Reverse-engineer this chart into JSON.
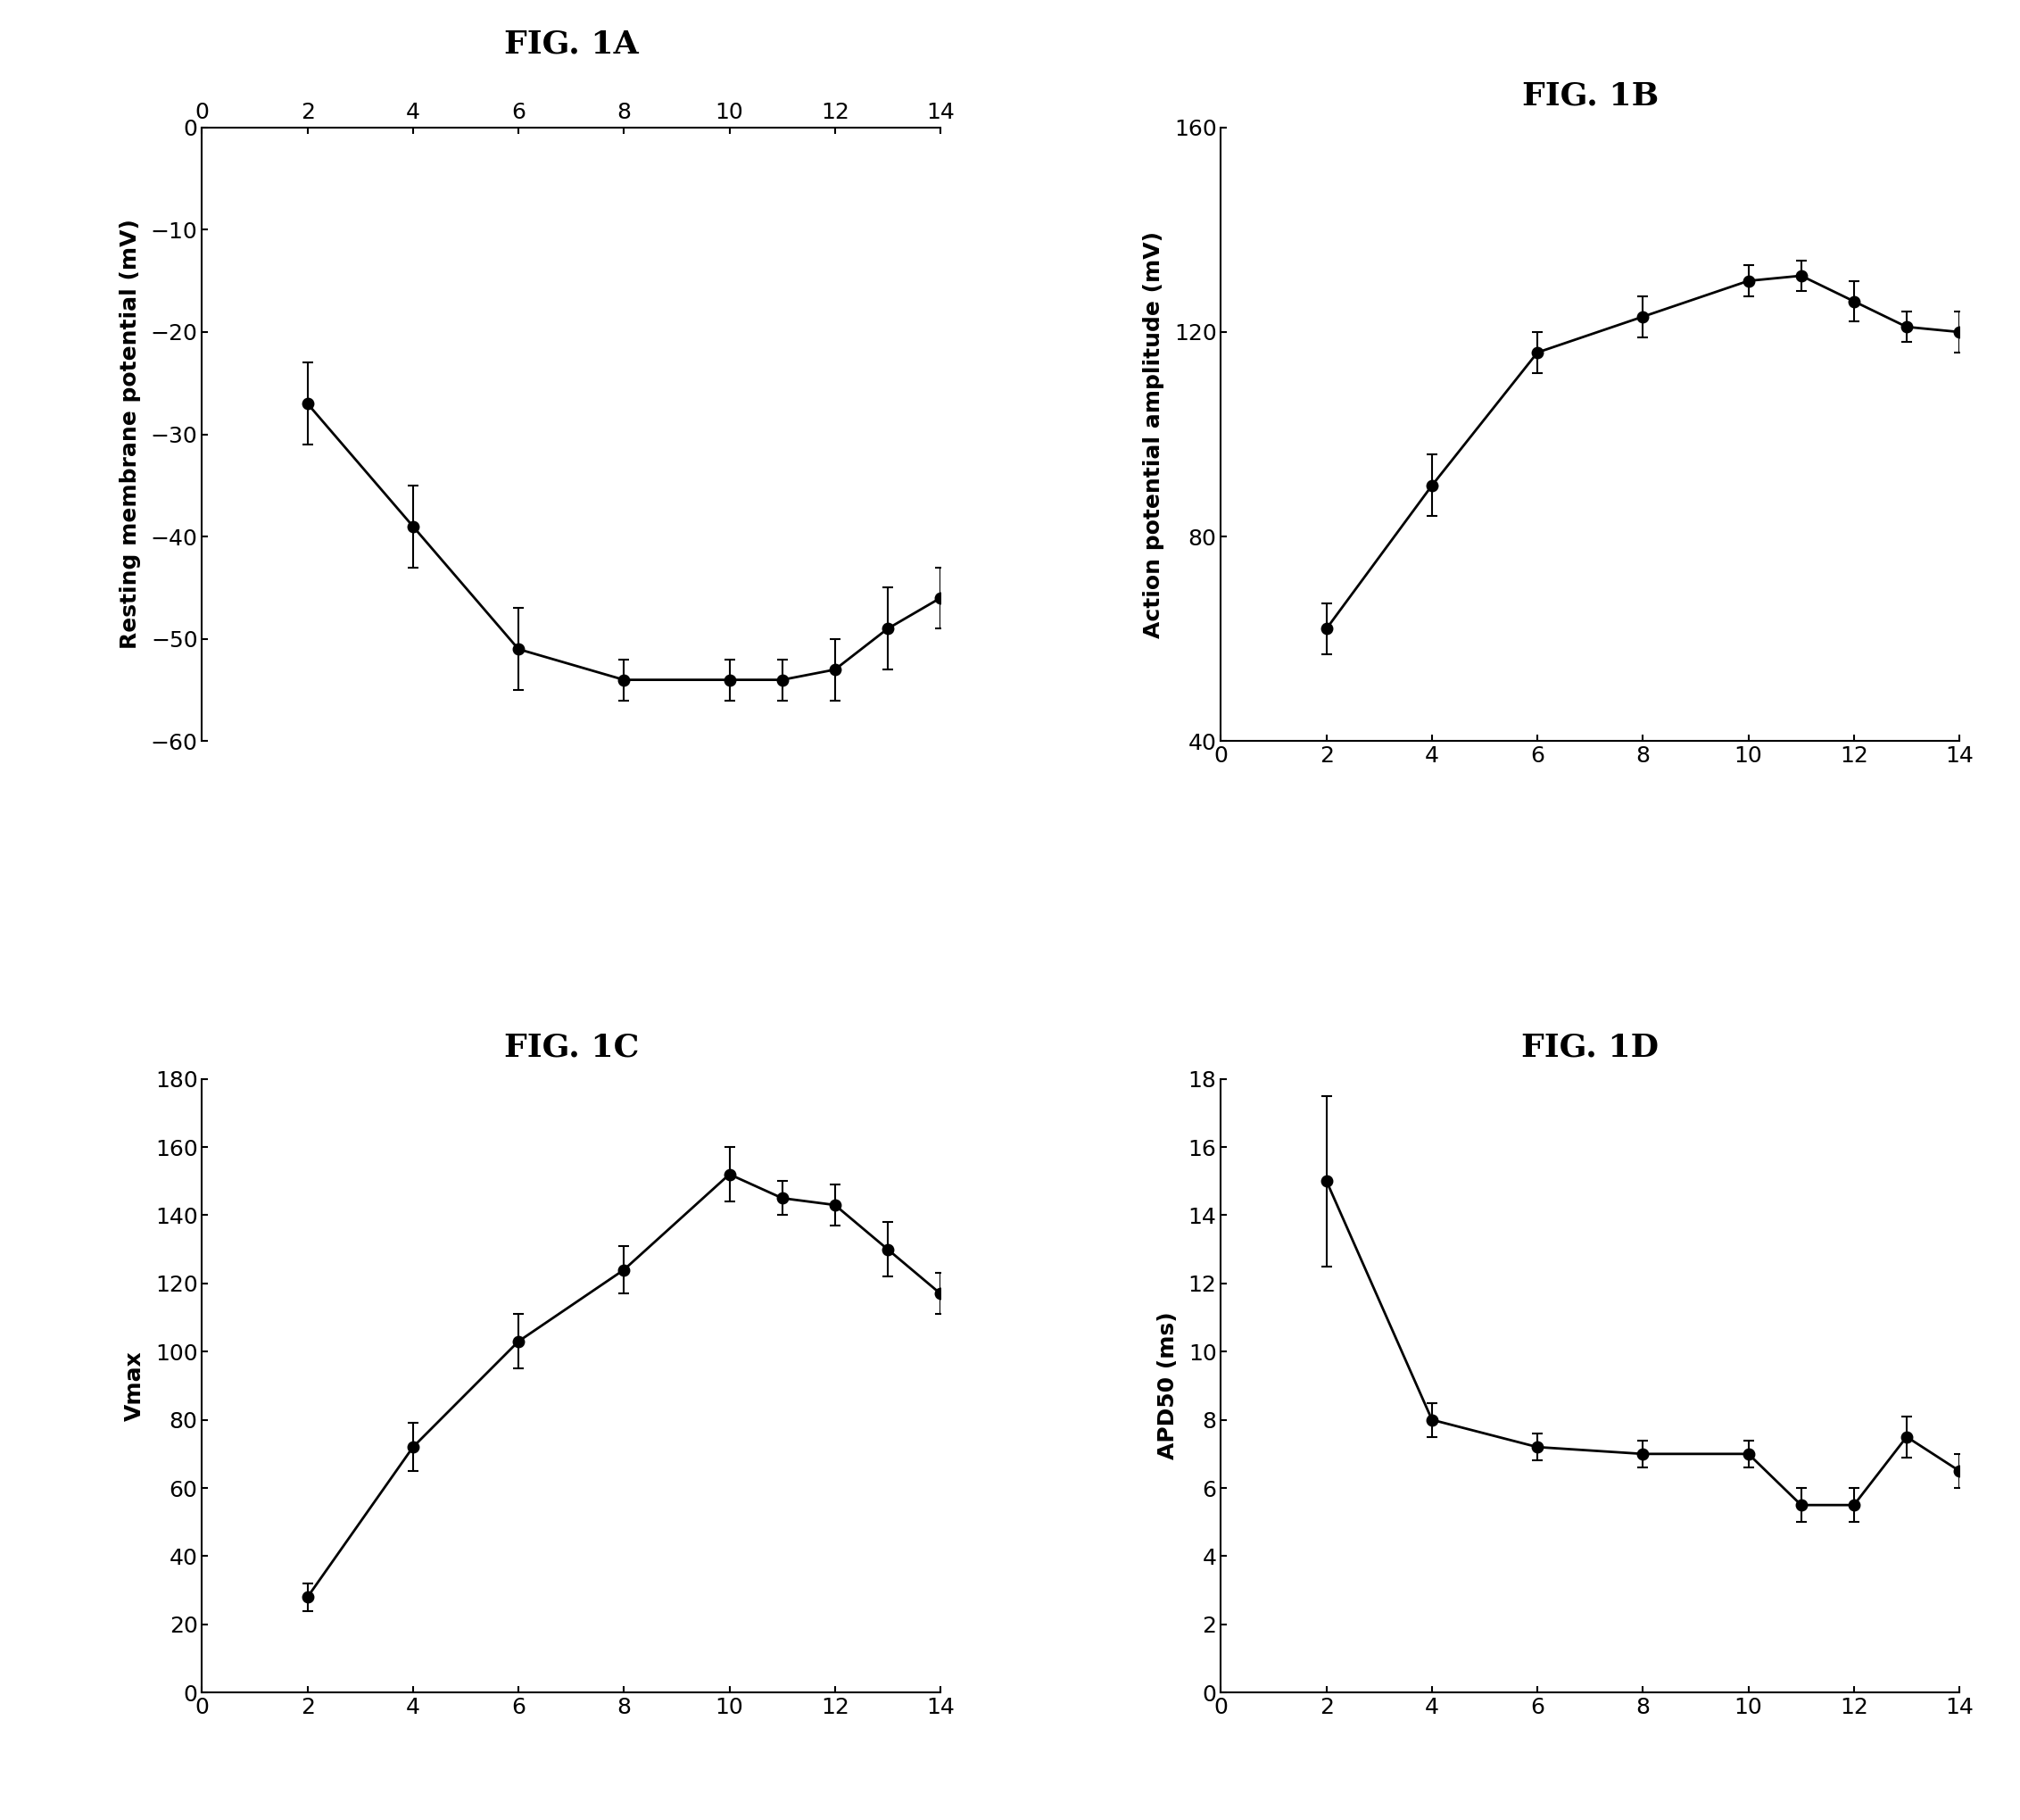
{
  "fig1A": {
    "title": "FIG. 1A",
    "ylabel": "Resting membrane potential (mV)",
    "x": [
      2,
      4,
      6,
      8,
      10,
      11,
      12,
      13,
      14
    ],
    "y": [
      -27,
      -39,
      -51,
      -54,
      -54,
      -54,
      -53,
      -49,
      -46
    ],
    "yerr": [
      4,
      4,
      4,
      2,
      2,
      2,
      3,
      4,
      3
    ],
    "xlim": [
      0,
      14
    ],
    "ylim": [
      -60,
      0
    ],
    "xticks": [
      0,
      2,
      4,
      6,
      8,
      10,
      12,
      14
    ],
    "yticks": [
      0,
      -10,
      -20,
      -30,
      -40,
      -50,
      -60
    ],
    "xaxis_top": true
  },
  "fig1B": {
    "title": "FIG. 1B",
    "ylabel": "Action potential amplitude (mV)",
    "x": [
      2,
      4,
      6,
      8,
      10,
      11,
      12,
      13,
      14
    ],
    "y": [
      62,
      90,
      116,
      123,
      130,
      131,
      126,
      121,
      120
    ],
    "yerr": [
      5,
      6,
      4,
      4,
      3,
      3,
      4,
      3,
      4
    ],
    "xlim": [
      0,
      14
    ],
    "ylim": [
      40,
      160
    ],
    "xticks": [
      0,
      2,
      4,
      6,
      8,
      10,
      12,
      14
    ],
    "yticks": [
      40,
      80,
      120,
      160
    ],
    "xaxis_top": false
  },
  "fig1C": {
    "title": "FIG. 1C",
    "ylabel": "Vmax",
    "x": [
      2,
      4,
      6,
      8,
      10,
      11,
      12,
      13,
      14
    ],
    "y": [
      28,
      72,
      103,
      124,
      152,
      145,
      143,
      130,
      117
    ],
    "yerr": [
      4,
      7,
      8,
      7,
      8,
      5,
      6,
      8,
      6
    ],
    "xlim": [
      0,
      14
    ],
    "ylim": [
      0,
      180
    ],
    "xticks": [
      0,
      2,
      4,
      6,
      8,
      10,
      12,
      14
    ],
    "yticks": [
      0,
      20,
      40,
      60,
      80,
      100,
      120,
      140,
      160,
      180
    ],
    "xaxis_top": false
  },
  "fig1D": {
    "title": "FIG. 1D",
    "ylabel": "APD50 (ms)",
    "x": [
      2,
      4,
      6,
      8,
      10,
      11,
      12,
      13,
      14
    ],
    "y": [
      15.0,
      8.0,
      7.2,
      7.0,
      7.0,
      5.5,
      5.5,
      7.5,
      6.5
    ],
    "yerr": [
      2.5,
      0.5,
      0.4,
      0.4,
      0.4,
      0.5,
      0.5,
      0.6,
      0.5
    ],
    "xlim": [
      0,
      14
    ],
    "ylim": [
      0,
      18
    ],
    "xticks": [
      0,
      2,
      4,
      6,
      8,
      10,
      12,
      14
    ],
    "yticks": [
      0,
      2,
      4,
      6,
      8,
      10,
      12,
      14,
      16,
      18
    ],
    "xaxis_top": false
  },
  "background_color": "#ffffff",
  "line_color": "#000000",
  "marker_color": "#000000",
  "title_fontsize": 26,
  "label_fontsize": 18,
  "tick_fontsize": 18,
  "linewidth": 2.0,
  "markersize": 9,
  "capsize": 4
}
